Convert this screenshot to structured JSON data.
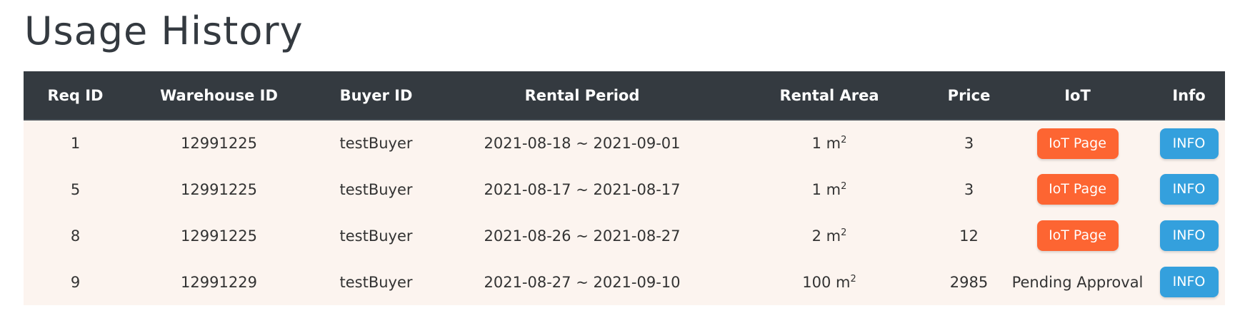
{
  "page": {
    "title": "Usage History"
  },
  "table": {
    "headers": [
      "Req ID",
      "Warehouse ID",
      "Buyer ID",
      "Rental Period",
      "Rental Area",
      "Price",
      "IoT",
      "Info"
    ],
    "rows": [
      {
        "req_id": "1",
        "warehouse_id": "12991225",
        "buyer_id": "testBuyer",
        "rental_period": "2021-08-18 ~ 2021-09-01",
        "area_value": "1 m",
        "area_unit_sup": "2",
        "price": "3",
        "iot_label": "IoT Page",
        "info_label": "INFO"
      },
      {
        "req_id": "5",
        "warehouse_id": "12991225",
        "buyer_id": "testBuyer",
        "rental_period": "2021-08-17 ~ 2021-08-17",
        "area_value": "1 m",
        "area_unit_sup": "2",
        "price": "3",
        "iot_label": "IoT Page",
        "info_label": "INFO"
      },
      {
        "req_id": "8",
        "warehouse_id": "12991225",
        "buyer_id": "testBuyer",
        "rental_period": "2021-08-26 ~ 2021-08-27",
        "area_value": "2 m",
        "area_unit_sup": "2",
        "price": "12",
        "iot_label": "IoT Page",
        "info_label": "INFO"
      },
      {
        "req_id": "9",
        "warehouse_id": "12991229",
        "buyer_id": "testBuyer",
        "rental_period": "2021-08-27 ~ 2021-09-10",
        "area_value": "100 m",
        "area_unit_sup": "2",
        "price": "2985",
        "iot_status": "Pending Approval",
        "info_label": "INFO"
      }
    ]
  },
  "colors": {
    "header_bg": "#343a40",
    "row_bg": "#fcf4ef",
    "iot_button": "#fd6532",
    "info_button": "#34a0dd"
  }
}
